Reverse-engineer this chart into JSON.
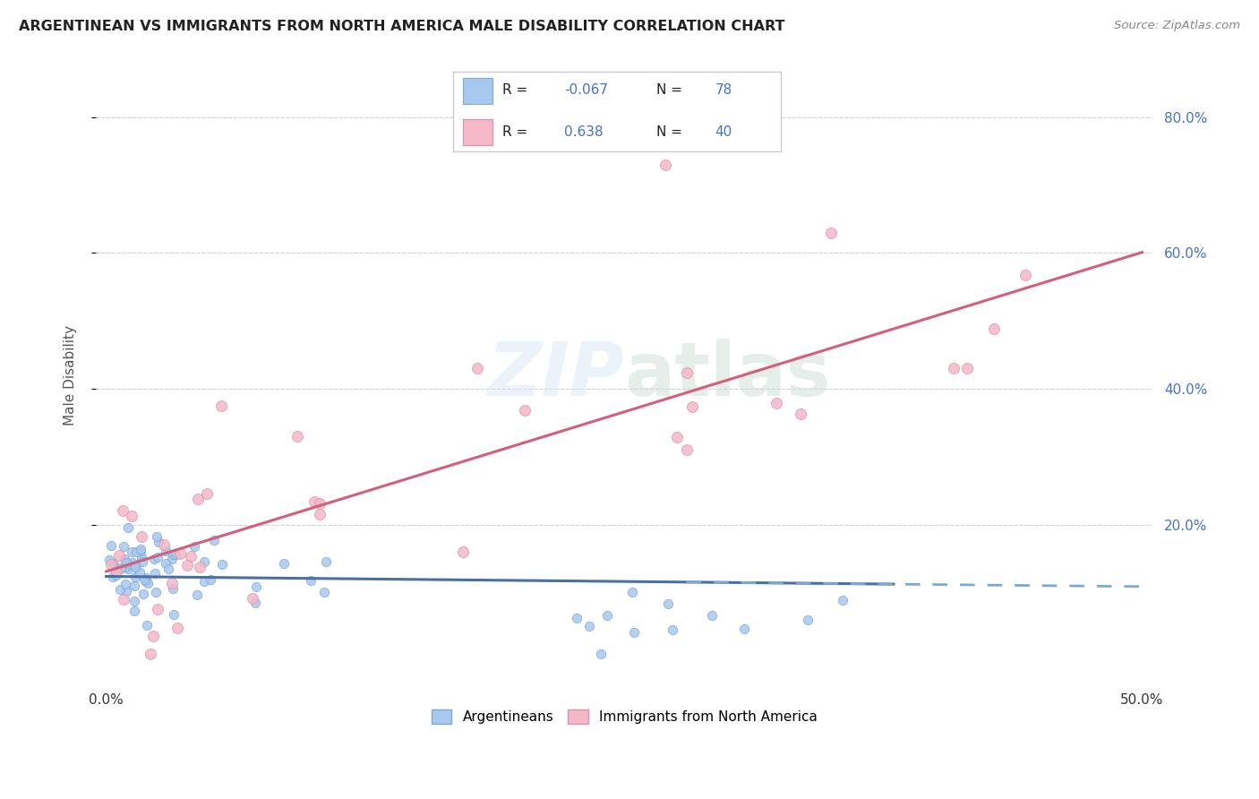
{
  "title": "ARGENTINEAN VS IMMIGRANTS FROM NORTH AMERICA MALE DISABILITY CORRELATION CHART",
  "source": "Source: ZipAtlas.com",
  "ylabel": "Male Disability",
  "xlim": [
    0.0,
    0.5
  ],
  "ylim": [
    0.0,
    0.85
  ],
  "ytick_values": [
    0.2,
    0.4,
    0.6,
    0.8
  ],
  "ytick_labels": [
    "20.0%",
    "40.0%",
    "60.0%",
    "80.0%"
  ],
  "xtick_values": [
    0.0,
    0.5
  ],
  "xtick_labels": [
    "0.0%",
    "50.0%"
  ],
  "color_blue_scatter": "#a8c8f0",
  "color_blue_edge": "#7aaad0",
  "color_pink_scatter": "#f4b8c8",
  "color_pink_edge": "#e090a8",
  "color_blue_line": "#4a6fa5",
  "color_blue_dash": "#7aaad0",
  "color_pink_line": "#d45f7a",
  "color_grid": "#cccccc",
  "color_ytick": "#4472c4",
  "color_xtick": "#555555",
  "legend_r1": "R = -0.067",
  "legend_n1": "N = 78",
  "legend_r2": "R =  0.638",
  "legend_n2": "N = 40",
  "watermark_text": "ZIPatlas",
  "seed": 123
}
